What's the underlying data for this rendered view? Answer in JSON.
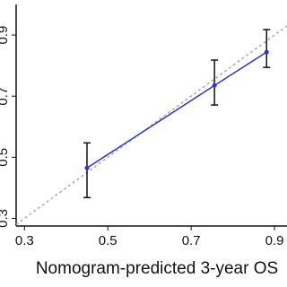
{
  "chart_data": {
    "type": "calibration",
    "xlabel": "Nomogram-predicted 3-year OS",
    "xlim": [
      0.28,
      0.93
    ],
    "ylim": [
      0.275,
      1.0
    ],
    "xticks": [
      0.3,
      0.5,
      0.7,
      0.9
    ],
    "yticks": [
      0.3,
      0.5,
      0.7,
      0.9
    ],
    "reference_line": true,
    "series": [
      {
        "color": "#2b35c9",
        "x": [
          0.45,
          0.756,
          0.881
        ],
        "values": [
          0.465,
          0.735,
          0.844
        ],
        "lower": [
          0.368,
          0.671,
          0.794
        ],
        "upper": [
          0.547,
          0.818,
          0.918
        ]
      }
    ]
  }
}
